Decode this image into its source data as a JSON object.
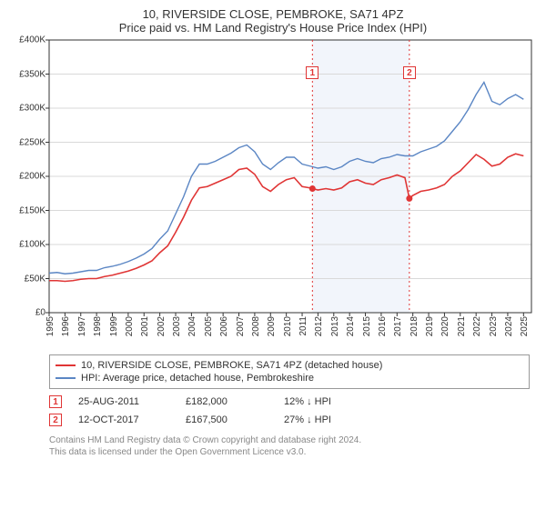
{
  "title_line1": "10, RIVERSIDE CLOSE, PEMBROKE, SA71 4PZ",
  "title_line2": "Price paid vs. HM Land Registry's House Price Index (HPI)",
  "chart": {
    "type": "line",
    "background_color": "#ffffff",
    "grid_color": "#d9d9d9",
    "axis_color": "#333333",
    "ylim": [
      0,
      400000
    ],
    "ytick_step": 50000,
    "yticks": [
      0,
      50000,
      100000,
      150000,
      200000,
      250000,
      300000,
      350000,
      400000
    ],
    "ytick_labels": [
      "£0",
      "£50K",
      "£100K",
      "£150K",
      "£200K",
      "£250K",
      "£300K",
      "£350K",
      "£400K"
    ],
    "xlim": [
      1995,
      2025.5
    ],
    "xticks": [
      1995,
      1996,
      1997,
      1998,
      1999,
      2000,
      2001,
      2002,
      2003,
      2004,
      2005,
      2006,
      2007,
      2008,
      2009,
      2010,
      2011,
      2012,
      2013,
      2014,
      2015,
      2016,
      2017,
      2018,
      2019,
      2020,
      2021,
      2022,
      2023,
      2024,
      2025
    ],
    "xtick_labels": [
      "1995",
      "1996",
      "1997",
      "1998",
      "1999",
      "2000",
      "2001",
      "2002",
      "2003",
      "2004",
      "2005",
      "2006",
      "2007",
      "2008",
      "2009",
      "2010",
      "2011",
      "2012",
      "2013",
      "2014",
      "2015",
      "2016",
      "2017",
      "2018",
      "2019",
      "2020",
      "2021",
      "2022",
      "2023",
      "2024",
      "2025"
    ],
    "shaded_band": {
      "xstart": 2011.65,
      "xend": 2017.78,
      "fill": "#f2f5fb"
    },
    "sale_markers": [
      {
        "label": "1",
        "x": 2011.65,
        "y_callout": 352000,
        "color": "#e03535",
        "line_color": "#e03535"
      },
      {
        "label": "2",
        "x": 2017.78,
        "y_callout": 352000,
        "color": "#e03535",
        "line_color": "#e03535"
      }
    ],
    "sale_points": [
      {
        "x": 2011.65,
        "y": 182000,
        "color": "#e03535"
      },
      {
        "x": 2017.78,
        "y": 167500,
        "color": "#e03535"
      }
    ],
    "series": [
      {
        "name": "property",
        "label": "10, RIVERSIDE CLOSE, PEMBROKE, SA71 4PZ (detached house)",
        "color": "#e03535",
        "line_width": 1.6,
        "points": [
          [
            1995,
            47000
          ],
          [
            1995.5,
            47000
          ],
          [
            1996,
            46000
          ],
          [
            1996.5,
            47000
          ],
          [
            1997,
            49000
          ],
          [
            1997.5,
            50000
          ],
          [
            1998,
            50000
          ],
          [
            1998.5,
            53000
          ],
          [
            1999,
            55000
          ],
          [
            1999.5,
            58000
          ],
          [
            2000,
            61000
          ],
          [
            2000.5,
            65000
          ],
          [
            2001,
            70000
          ],
          [
            2001.5,
            76000
          ],
          [
            2002,
            88000
          ],
          [
            2002.5,
            98000
          ],
          [
            2003,
            118000
          ],
          [
            2003.5,
            140000
          ],
          [
            2004,
            165000
          ],
          [
            2004.5,
            183000
          ],
          [
            2005,
            185000
          ],
          [
            2005.5,
            190000
          ],
          [
            2006,
            195000
          ],
          [
            2006.5,
            200000
          ],
          [
            2007,
            210000
          ],
          [
            2007.5,
            212000
          ],
          [
            2008,
            203000
          ],
          [
            2008.5,
            185000
          ],
          [
            2009,
            178000
          ],
          [
            2009.5,
            188000
          ],
          [
            2010,
            195000
          ],
          [
            2010.5,
            198000
          ],
          [
            2011,
            185000
          ],
          [
            2011.5,
            183000
          ],
          [
            2012,
            180000
          ],
          [
            2012.5,
            182000
          ],
          [
            2013,
            180000
          ],
          [
            2013.5,
            183000
          ],
          [
            2014,
            192000
          ],
          [
            2014.5,
            195000
          ],
          [
            2015,
            190000
          ],
          [
            2015.5,
            188000
          ],
          [
            2016,
            195000
          ],
          [
            2016.5,
            198000
          ],
          [
            2017,
            202000
          ],
          [
            2017.5,
            198000
          ],
          [
            2017.78,
            167500
          ],
          [
            2018,
            172000
          ],
          [
            2018.5,
            178000
          ],
          [
            2019,
            180000
          ],
          [
            2019.5,
            183000
          ],
          [
            2020,
            188000
          ],
          [
            2020.5,
            200000
          ],
          [
            2021,
            208000
          ],
          [
            2021.5,
            220000
          ],
          [
            2022,
            232000
          ],
          [
            2022.5,
            225000
          ],
          [
            2023,
            215000
          ],
          [
            2023.5,
            218000
          ],
          [
            2024,
            228000
          ],
          [
            2024.5,
            233000
          ],
          [
            2025,
            230000
          ]
        ]
      },
      {
        "name": "hpi",
        "label": "HPI: Average price, detached house, Pembrokeshire",
        "color": "#5b86c4",
        "line_width": 1.4,
        "points": [
          [
            1995,
            58000
          ],
          [
            1995.5,
            59000
          ],
          [
            1996,
            57000
          ],
          [
            1996.5,
            58000
          ],
          [
            1997,
            60000
          ],
          [
            1997.5,
            62000
          ],
          [
            1998,
            62000
          ],
          [
            1998.5,
            66000
          ],
          [
            1999,
            68000
          ],
          [
            1999.5,
            71000
          ],
          [
            2000,
            75000
          ],
          [
            2000.5,
            80000
          ],
          [
            2001,
            86000
          ],
          [
            2001.5,
            94000
          ],
          [
            2002,
            108000
          ],
          [
            2002.5,
            120000
          ],
          [
            2003,
            145000
          ],
          [
            2003.5,
            170000
          ],
          [
            2004,
            200000
          ],
          [
            2004.5,
            218000
          ],
          [
            2005,
            218000
          ],
          [
            2005.5,
            222000
          ],
          [
            2006,
            228000
          ],
          [
            2006.5,
            234000
          ],
          [
            2007,
            242000
          ],
          [
            2007.5,
            246000
          ],
          [
            2008,
            236000
          ],
          [
            2008.5,
            218000
          ],
          [
            2009,
            210000
          ],
          [
            2009.5,
            220000
          ],
          [
            2010,
            228000
          ],
          [
            2010.5,
            228000
          ],
          [
            2011,
            218000
          ],
          [
            2011.5,
            215000
          ],
          [
            2012,
            212000
          ],
          [
            2012.5,
            214000
          ],
          [
            2013,
            210000
          ],
          [
            2013.5,
            214000
          ],
          [
            2014,
            222000
          ],
          [
            2014.5,
            226000
          ],
          [
            2015,
            222000
          ],
          [
            2015.5,
            220000
          ],
          [
            2016,
            226000
          ],
          [
            2016.5,
            228000
          ],
          [
            2017,
            232000
          ],
          [
            2017.5,
            230000
          ],
          [
            2018,
            230000
          ],
          [
            2018.5,
            236000
          ],
          [
            2019,
            240000
          ],
          [
            2019.5,
            244000
          ],
          [
            2020,
            252000
          ],
          [
            2020.5,
            266000
          ],
          [
            2021,
            280000
          ],
          [
            2021.5,
            298000
          ],
          [
            2022,
            320000
          ],
          [
            2022.5,
            338000
          ],
          [
            2023,
            310000
          ],
          [
            2023.5,
            305000
          ],
          [
            2024,
            314000
          ],
          [
            2024.5,
            320000
          ],
          [
            2025,
            313000
          ]
        ]
      }
    ]
  },
  "legend": {
    "rows": [
      {
        "color": "#e03535",
        "label": "10, RIVERSIDE CLOSE, PEMBROKE, SA71 4PZ (detached house)"
      },
      {
        "color": "#5b86c4",
        "label": "HPI: Average price, detached house, Pembrokeshire"
      }
    ]
  },
  "sales": [
    {
      "marker": "1",
      "marker_color": "#e03535",
      "date": "25-AUG-2011",
      "price": "£182,000",
      "delta": "12% ↓ HPI"
    },
    {
      "marker": "2",
      "marker_color": "#e03535",
      "date": "12-OCT-2017",
      "price": "£167,500",
      "delta": "27% ↓ HPI"
    }
  ],
  "footer_line1": "Contains HM Land Registry data © Crown copyright and database right 2024.",
  "footer_line2": "This data is licensed under the Open Government Licence v3.0."
}
